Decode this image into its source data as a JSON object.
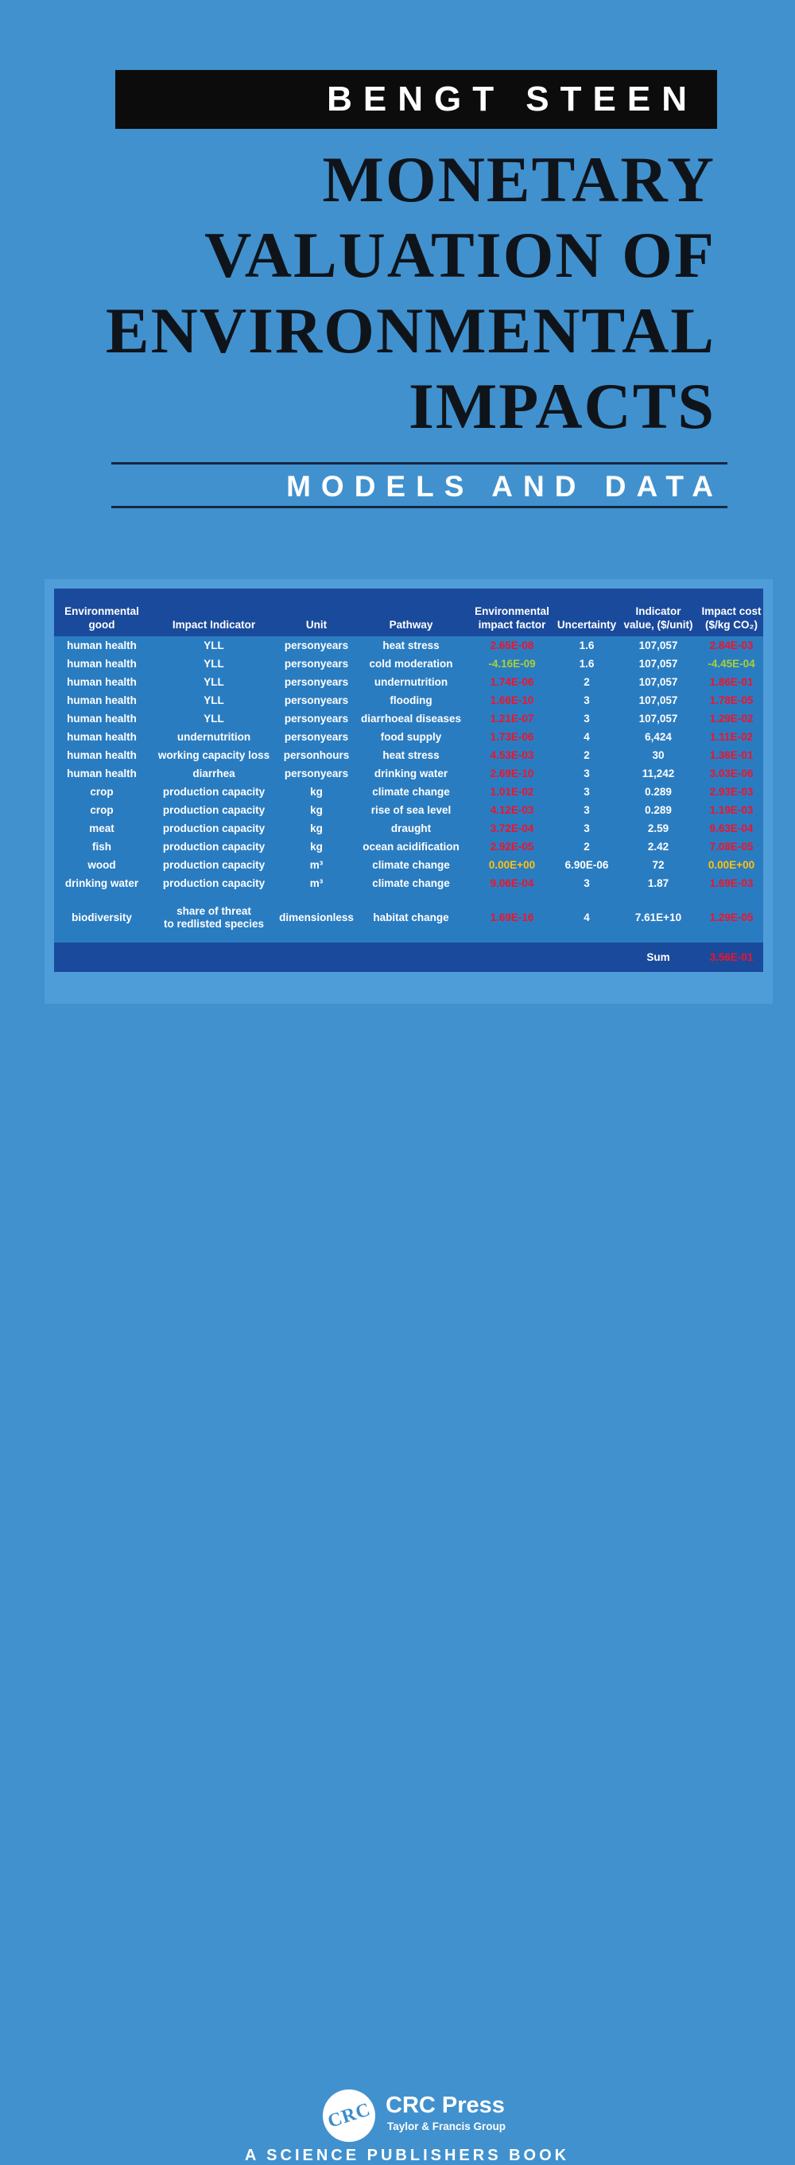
{
  "cover": {
    "author": "BENGT STEEN",
    "title_lines": [
      "MONETARY",
      "VALUATION OF",
      "ENVIRONMENTAL",
      "IMPACTS"
    ],
    "subtitle": "MODELS AND DATA"
  },
  "table": {
    "columns": [
      {
        "line1": "Environmental",
        "line2": "good"
      },
      {
        "line1": "",
        "line2": "Impact Indicator"
      },
      {
        "line1": "",
        "line2": "Unit"
      },
      {
        "line1": "",
        "line2": "Pathway"
      },
      {
        "line1": "Environmental",
        "line2": "impact factor"
      },
      {
        "line1": "",
        "line2": "Uncertainty"
      },
      {
        "line1": "Indicator",
        "line2": "value, ($/unit)"
      },
      {
        "line1": "Impact cost",
        "line2": "($/kg CO₂)"
      }
    ],
    "rows": [
      {
        "good": "human health",
        "indicator": "YLL",
        "unit": "personyears",
        "pathway": "heat stress",
        "factor": "2.65E-08",
        "factor_color": "red",
        "uncertainty": "1.6",
        "value": "107,057",
        "cost": "2.84E-03",
        "cost_color": "red"
      },
      {
        "good": "human health",
        "indicator": "YLL",
        "unit": "personyears",
        "pathway": "cold moderation",
        "factor": "-4.16E-09",
        "factor_color": "green",
        "uncertainty": "1.6",
        "value": "107,057",
        "cost": "-4.45E-04",
        "cost_color": "green"
      },
      {
        "good": "human health",
        "indicator": "YLL",
        "unit": "personyears",
        "pathway": "undernutrition",
        "factor": "1.74E-06",
        "factor_color": "red",
        "uncertainty": "2",
        "value": "107,057",
        "cost": "1.86E-01",
        "cost_color": "red"
      },
      {
        "good": "human health",
        "indicator": "YLL",
        "unit": "personyears",
        "pathway": "flooding",
        "factor": "1.66E-10",
        "factor_color": "red",
        "uncertainty": "3",
        "value": "107,057",
        "cost": "1.78E-05",
        "cost_color": "red"
      },
      {
        "good": "human health",
        "indicator": "YLL",
        "unit": "personyears",
        "pathway": "diarrhoeal diseases",
        "factor": "1.21E-07",
        "factor_color": "red",
        "uncertainty": "3",
        "value": "107,057",
        "cost": "1.29E-02",
        "cost_color": "red"
      },
      {
        "good": "human health",
        "indicator": "undernutrition",
        "unit": "personyears",
        "pathway": "food supply",
        "factor": "1.73E-06",
        "factor_color": "red",
        "uncertainty": "4",
        "value": "6,424",
        "cost": "1.11E-02",
        "cost_color": "red"
      },
      {
        "good": "human health",
        "indicator": "working capacity loss",
        "unit": "personhours",
        "pathway": "heat stress",
        "factor": "4.53E-03",
        "factor_color": "red",
        "uncertainty": "2",
        "value": "30",
        "cost": "1.36E-01",
        "cost_color": "red"
      },
      {
        "good": "human health",
        "indicator": "diarrhea",
        "unit": "personyears",
        "pathway": "drinking water",
        "factor": "2.69E-10",
        "factor_color": "red",
        "uncertainty": "3",
        "value": "11,242",
        "cost": "3.03E-06",
        "cost_color": "red"
      },
      {
        "good": "crop",
        "indicator": "production capacity",
        "unit": "kg",
        "pathway": "climate change",
        "factor": "1.01E-02",
        "factor_color": "red",
        "uncertainty": "3",
        "value": "0.289",
        "cost": "2.93E-03",
        "cost_color": "red"
      },
      {
        "good": "crop",
        "indicator": "production capacity",
        "unit": "kg",
        "pathway": "rise of sea level",
        "factor": "4.12E-03",
        "factor_color": "red",
        "uncertainty": "3",
        "value": "0.289",
        "cost": "1.19E-03",
        "cost_color": "red"
      },
      {
        "good": "meat",
        "indicator": "production capacity",
        "unit": "kg",
        "pathway": "draught",
        "factor": "3.72E-04",
        "factor_color": "red",
        "uncertainty": "3",
        "value": "2.59",
        "cost": "9.63E-04",
        "cost_color": "red"
      },
      {
        "good": "fish",
        "indicator": "production capacity",
        "unit": "kg",
        "pathway": "ocean acidification",
        "factor": "2.92E-05",
        "factor_color": "red",
        "uncertainty": "2",
        "value": "2.42",
        "cost": "7.08E-05",
        "cost_color": "red"
      },
      {
        "good": "wood",
        "indicator": "production capacity",
        "unit": "m³",
        "pathway": "climate change",
        "factor": "0.00E+00",
        "factor_color": "yellow",
        "uncertainty": "6.90E-06",
        "value": "72",
        "cost": "0.00E+00",
        "cost_color": "yellow"
      },
      {
        "good": "drinking water",
        "indicator": "production capacity",
        "unit": "m³",
        "pathway": "climate change",
        "factor": "9.06E-04",
        "factor_color": "red",
        "uncertainty": "3",
        "value": "1.87",
        "cost": "1.69E-03",
        "cost_color": "red"
      },
      {
        "good": "biodiversity",
        "indicator": "share of threat\nto redlisted species",
        "unit": "dimensionless",
        "pathway": "habitat change",
        "factor": "1.69E-16",
        "factor_color": "red",
        "uncertainty": "4",
        "value": "7.61E+10",
        "cost": "1.29E-05",
        "cost_color": "red",
        "tall": true
      }
    ],
    "sum_label": "Sum",
    "sum_value": "3.56E-01",
    "sum_color": "red",
    "value_colors": {
      "red": "#f0132b",
      "green": "#aacf37",
      "yellow": "#ffc20e",
      "white": "#ffffff"
    }
  },
  "publisher": {
    "logo_text": "CRC",
    "name": "CRC Press",
    "tagline": "Taylor & Francis Group",
    "imprint": "A SCIENCE PUBLISHERS BOOK"
  },
  "colors": {
    "page_background": "#4191ce",
    "author_bar": "#0c0c0c",
    "table_header": "#1a4a9c",
    "table_body": "#2a7cc1",
    "table_panel": "#4f9dd8",
    "title_text": "#0f141a"
  }
}
